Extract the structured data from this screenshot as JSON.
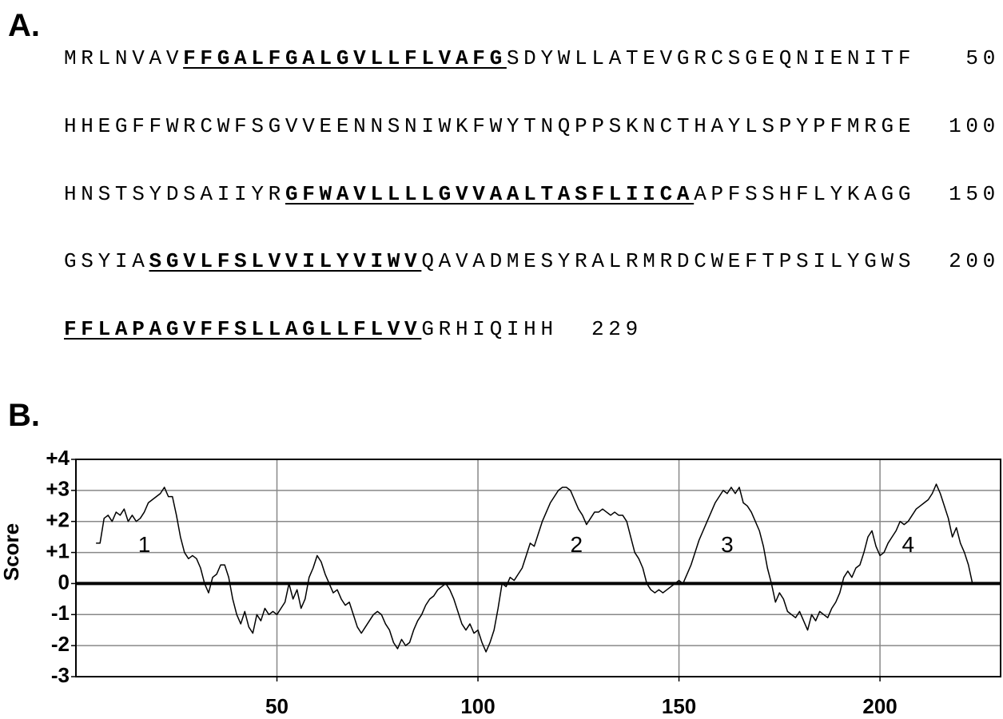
{
  "panel_a": {
    "label": "A.",
    "lines": [
      {
        "segments": [
          {
            "text": "MRLNVAV",
            "tm": false
          },
          {
            "text": "FFGALFGALGVLLFLVAFG",
            "tm": true
          },
          {
            "text": "SDYWLLATEVGRCSGEQNIENITF",
            "tm": false
          }
        ],
        "number": 50
      },
      {
        "segments": [
          {
            "text": "HHEGFFWRCWFSGVVEENNSNIWKFWYTNQPPSKNCTHAYLSPYPFMRGE",
            "tm": false
          }
        ],
        "number": 100
      },
      {
        "segments": [
          {
            "text": "HNSTSYDSAIIYR",
            "tm": false
          },
          {
            "text": "GFWAVLLLLGVVAALTASFLIICA",
            "tm": true
          },
          {
            "text": "APFSSHFLYKAGG",
            "tm": false
          }
        ],
        "number": 150
      },
      {
        "segments": [
          {
            "text": "GSYIA",
            "tm": false
          },
          {
            "text": "SGVLFSLVVILYVIWV",
            "tm": true
          },
          {
            "text": "QAVADMESYRALRMRDCWEFTPSILYGWS",
            "tm": false
          }
        ],
        "number": 200
      },
      {
        "segments": [
          {
            "text": "FFLAPAGVFFSLLAGLLFLVV",
            "tm": true
          },
          {
            "text": "GRHIQIHH",
            "tm": false
          }
        ],
        "number": 229
      }
    ]
  },
  "chart_data": {
    "type": "line",
    "label": "B.",
    "ylabel": "Score",
    "color": "#000000",
    "grid": true,
    "xlim": [
      0,
      230
    ],
    "ylim": [
      -3,
      4
    ],
    "xticks": [
      50,
      100,
      150,
      200
    ],
    "yticks": [
      {
        "value": 4,
        "label": "+4"
      },
      {
        "value": 3,
        "label": "+3"
      },
      {
        "value": 2,
        "label": "+2"
      },
      {
        "value": 1,
        "label": "+1"
      },
      0,
      -1,
      -2,
      -3
    ],
    "annotations": [
      {
        "text": "1",
        "x": 17,
        "y": 1.2
      },
      {
        "text": "2",
        "x": 124.5,
        "y": 1.2
      },
      {
        "text": "3",
        "x": 162,
        "y": 1.2
      },
      {
        "text": "4",
        "x": 207,
        "y": 1.2
      }
    ],
    "x": [
      5,
      6,
      7,
      8,
      9,
      10,
      11,
      12,
      13,
      14,
      15,
      16,
      17,
      18,
      19,
      20,
      21,
      22,
      23,
      24,
      25,
      26,
      27,
      28,
      29,
      30,
      31,
      32,
      33,
      34,
      35,
      36,
      37,
      38,
      39,
      40,
      41,
      42,
      43,
      44,
      45,
      46,
      47,
      48,
      49,
      50,
      51,
      52,
      53,
      54,
      55,
      56,
      57,
      58,
      59,
      60,
      61,
      62,
      63,
      64,
      65,
      66,
      67,
      68,
      69,
      70,
      71,
      72,
      73,
      74,
      75,
      76,
      77,
      78,
      79,
      80,
      81,
      82,
      83,
      84,
      85,
      86,
      87,
      88,
      89,
      90,
      91,
      92,
      93,
      94,
      95,
      96,
      97,
      98,
      99,
      100,
      101,
      102,
      103,
      104,
      105,
      106,
      107,
      108,
      109,
      110,
      111,
      112,
      113,
      114,
      115,
      116,
      117,
      118,
      119,
      120,
      121,
      122,
      123,
      124,
      125,
      126,
      127,
      128,
      129,
      130,
      131,
      132,
      133,
      134,
      135,
      136,
      137,
      138,
      139,
      140,
      141,
      142,
      143,
      144,
      145,
      146,
      147,
      148,
      149,
      150,
      151,
      152,
      153,
      154,
      155,
      156,
      157,
      158,
      159,
      160,
      161,
      162,
      163,
      164,
      165,
      166,
      167,
      168,
      169,
      170,
      171,
      172,
      173,
      174,
      175,
      176,
      177,
      178,
      179,
      180,
      181,
      182,
      183,
      184,
      185,
      186,
      187,
      188,
      189,
      190,
      191,
      192,
      193,
      194,
      195,
      196,
      197,
      198,
      199,
      200,
      201,
      202,
      203,
      204,
      205,
      206,
      207,
      208,
      209,
      210,
      211,
      212,
      213,
      214,
      215,
      216,
      217,
      218,
      219,
      220,
      221,
      222,
      223
    ],
    "values": [
      1.3,
      1.3,
      2.1,
      2.2,
      2.0,
      2.3,
      2.2,
      2.4,
      2.0,
      2.2,
      2.0,
      2.1,
      2.3,
      2.6,
      2.7,
      2.8,
      2.9,
      3.1,
      2.8,
      2.8,
      2.2,
      1.5,
      1.0,
      0.8,
      0.9,
      0.8,
      0.5,
      0.0,
      -0.3,
      0.2,
      0.3,
      0.6,
      0.6,
      0.2,
      -0.5,
      -1.0,
      -1.3,
      -0.9,
      -1.4,
      -1.6,
      -1.0,
      -1.2,
      -0.8,
      -1.0,
      -0.9,
      -1.0,
      -0.8,
      -0.6,
      0.0,
      -0.5,
      -0.2,
      -0.8,
      -0.5,
      0.2,
      0.5,
      0.9,
      0.7,
      0.3,
      0.0,
      -0.3,
      -0.2,
      -0.5,
      -0.7,
      -0.6,
      -1.0,
      -1.4,
      -1.6,
      -1.4,
      -1.2,
      -1.0,
      -0.9,
      -1.0,
      -1.3,
      -1.5,
      -1.9,
      -2.1,
      -1.8,
      -2.0,
      -1.9,
      -1.5,
      -1.2,
      -1.0,
      -0.7,
      -0.5,
      -0.4,
      -0.2,
      -0.1,
      0.0,
      -0.2,
      -0.5,
      -0.9,
      -1.3,
      -1.5,
      -1.3,
      -1.6,
      -1.5,
      -1.9,
      -2.2,
      -1.9,
      -1.5,
      -0.8,
      0.0,
      -0.1,
      0.2,
      0.1,
      0.3,
      0.5,
      0.9,
      1.3,
      1.2,
      1.6,
      2.0,
      2.3,
      2.6,
      2.8,
      3.0,
      3.1,
      3.1,
      3.0,
      2.7,
      2.4,
      2.2,
      1.9,
      2.1,
      2.3,
      2.3,
      2.4,
      2.3,
      2.2,
      2.3,
      2.2,
      2.2,
      2.0,
      1.5,
      1.0,
      0.8,
      0.5,
      0.0,
      -0.2,
      -0.3,
      -0.2,
      -0.3,
      -0.2,
      -0.1,
      0.0,
      0.1,
      0.0,
      0.3,
      0.6,
      1.0,
      1.4,
      1.7,
      2.0,
      2.3,
      2.6,
      2.8,
      3.0,
      2.9,
      3.1,
      2.9,
      3.1,
      2.6,
      2.5,
      2.3,
      2.0,
      1.7,
      1.2,
      0.5,
      0.0,
      -0.6,
      -0.3,
      -0.5,
      -0.9,
      -1.0,
      -1.1,
      -0.9,
      -1.2,
      -1.5,
      -1.0,
      -1.2,
      -0.9,
      -1.0,
      -1.1,
      -0.8,
      -0.6,
      -0.3,
      0.2,
      0.4,
      0.2,
      0.5,
      0.6,
      1.0,
      1.5,
      1.7,
      1.2,
      0.9,
      1.0,
      1.3,
      1.5,
      1.7,
      2.0,
      1.9,
      2.0,
      2.2,
      2.4,
      2.5,
      2.6,
      2.7,
      2.9,
      3.2,
      2.9,
      2.5,
      2.1,
      1.5,
      1.8,
      1.3,
      1.0,
      0.6,
      0.0
    ]
  }
}
